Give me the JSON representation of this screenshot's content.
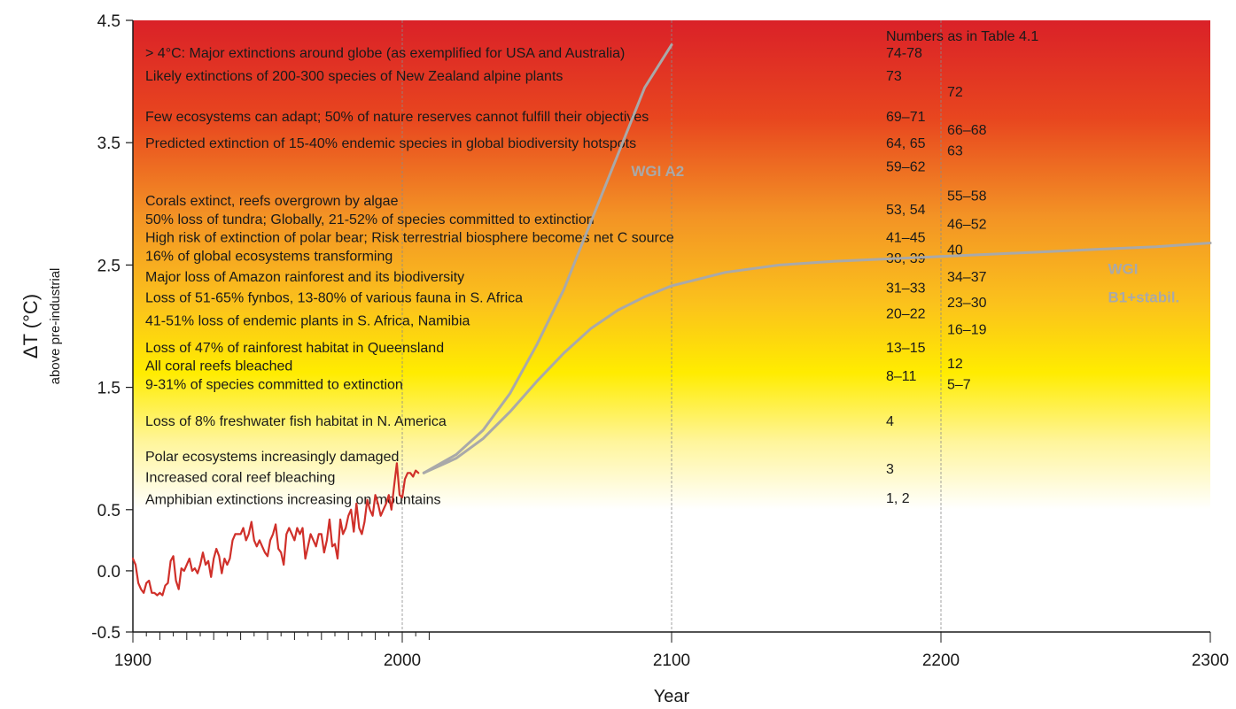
{
  "chart_data": {
    "type": "line",
    "xlabel": "Year",
    "ylabel": "ΔT (°C)",
    "ylabel_sub": "above pre-industrial",
    "xlim": [
      1900,
      2300
    ],
    "ylim": [
      -0.5,
      4.5
    ],
    "x_ticks": [
      "1900",
      "2000",
      "2100",
      "2200",
      "2300"
    ],
    "x_tick_values": [
      1900,
      2000,
      2100,
      2200,
      2300
    ],
    "y_ticks": [
      "4.5",
      "3.5",
      "2.5",
      "1.5",
      "0.5",
      "0.0",
      "-0.5"
    ],
    "y_tick_values": [
      4.5,
      3.5,
      2.5,
      1.5,
      0.5,
      0.0,
      -0.5
    ],
    "grid": "vertical dashed at 2000, 2100, 2200",
    "background": "vertical gradient from white (0.5 °C) through yellow to red (4.5 °C)",
    "colors": {
      "observed": "#d0302a",
      "scenario": "#a9a9a9",
      "gradient_red": "#da2128",
      "gradient_orange": "#f39325",
      "gradient_yellow": "#ffec00"
    },
    "series": [
      {
        "kind": "observed",
        "x": [
          1900,
          1901,
          1902,
          1903,
          1904,
          1905,
          1906,
          1907,
          1908,
          1909,
          1910,
          1911,
          1912,
          1913,
          1914,
          1915,
          1916,
          1917,
          1918,
          1919,
          1920,
          1921,
          1922,
          1923,
          1924,
          1925,
          1926,
          1927,
          1928,
          1929,
          1930,
          1931,
          1932,
          1933,
          1934,
          1935,
          1936,
          1937,
          1938,
          1939,
          1940,
          1941,
          1942,
          1943,
          1944,
          1945,
          1946,
          1947,
          1948,
          1949,
          1950,
          1951,
          1952,
          1953,
          1954,
          1955,
          1956,
          1957,
          1958,
          1959,
          1960,
          1961,
          1962,
          1963,
          1964,
          1965,
          1966,
          1967,
          1968,
          1969,
          1970,
          1971,
          1972,
          1973,
          1974,
          1975,
          1976,
          1977,
          1978,
          1979,
          1980,
          1981,
          1982,
          1983,
          1984,
          1985,
          1986,
          1987,
          1988,
          1989,
          1990,
          1991,
          1992,
          1993,
          1994,
          1995,
          1996,
          1997,
          1998,
          1999,
          2000,
          2001,
          2002,
          2003,
          2004,
          2005,
          2006
        ],
        "y": [
          0.1,
          0.05,
          -0.1,
          -0.15,
          -0.18,
          -0.1,
          -0.08,
          -0.18,
          -0.18,
          -0.2,
          -0.18,
          -0.2,
          -0.12,
          -0.1,
          0.08,
          0.12,
          -0.08,
          -0.15,
          0.02,
          0.0,
          0.05,
          0.1,
          0.0,
          0.02,
          -0.02,
          0.05,
          0.15,
          0.05,
          0.08,
          -0.05,
          0.1,
          0.18,
          0.12,
          -0.02,
          0.1,
          0.05,
          0.1,
          0.25,
          0.3,
          0.3,
          0.3,
          0.35,
          0.25,
          0.3,
          0.4,
          0.25,
          0.2,
          0.25,
          0.2,
          0.15,
          0.12,
          0.25,
          0.3,
          0.38,
          0.18,
          0.15,
          0.05,
          0.3,
          0.35,
          0.3,
          0.25,
          0.35,
          0.3,
          0.35,
          0.1,
          0.2,
          0.3,
          0.25,
          0.2,
          0.3,
          0.3,
          0.15,
          0.25,
          0.42,
          0.2,
          0.22,
          0.1,
          0.42,
          0.3,
          0.35,
          0.45,
          0.5,
          0.32,
          0.55,
          0.35,
          0.3,
          0.4,
          0.58,
          0.5,
          0.45,
          0.62,
          0.55,
          0.45,
          0.5,
          0.55,
          0.62,
          0.5,
          0.7,
          0.88,
          0.62,
          0.6,
          0.75,
          0.8,
          0.8,
          0.77,
          0.82,
          0.8
        ]
      },
      {
        "kind": "scenario",
        "x": [
          2008,
          2020,
          2030,
          2040,
          2050,
          2060,
          2070,
          2080,
          2090,
          2100
        ],
        "y": [
          0.8,
          0.95,
          1.15,
          1.45,
          1.85,
          2.3,
          2.85,
          3.4,
          3.95,
          4.3
        ]
      },
      {
        "kind": "scenario",
        "x": [
          2008,
          2020,
          2030,
          2040,
          2050,
          2060,
          2070,
          2080,
          2090,
          2100,
          2120,
          2140,
          2160,
          2180,
          2200,
          2220,
          2240,
          2260,
          2280,
          2300
        ],
        "y": [
          0.8,
          0.92,
          1.08,
          1.3,
          1.55,
          1.78,
          1.98,
          2.13,
          2.24,
          2.33,
          2.44,
          2.5,
          2.53,
          2.55,
          2.57,
          2.59,
          2.61,
          2.63,
          2.65,
          2.68
        ]
      }
    ],
    "scenario_labels": [
      {
        "text": "WGI A2",
        "x": 2085,
        "y": 3.27
      },
      {
        "text": "WGI",
        "x": 2262,
        "y": 2.47
      },
      {
        "text": "B1+stabil.",
        "x": 2262,
        "y": 2.24
      }
    ],
    "table_header": "Numbers as in Table 4.1",
    "impacts": [
      {
        "text": "> 4°C: Major extinctions around globe (as exemplified for USA and Australia)",
        "y": 4.24
      },
      {
        "text": "Likely extinctions of 200-300 species of New Zealand alpine plants",
        "y": 4.05
      },
      {
        "text": "Few ecosystems can adapt;  50% of nature reserves cannot fulfill their objectives",
        "y": 3.72
      },
      {
        "text": "Predicted extinction of 15-40% endemic species in global biodiversity hotspots",
        "y": 3.5
      },
      {
        "text": "Corals extinct, reefs overgrown by algae",
        "y": 3.03
      },
      {
        "text": "50% loss of tundra;  Globally, 21-52% of species committed to extinction",
        "y": 2.88
      },
      {
        "text": "High risk of extinction of polar bear;  Risk terrestrial biosphere becomes net C source",
        "y": 2.73
      },
      {
        "text": "16% of global ecosystems transforming",
        "y": 2.58
      },
      {
        "text": "Major loss of Amazon rainforest and its biodiversity",
        "y": 2.41
      },
      {
        "text": "Loss of 51-65% fynbos, 13-80% of various fauna in S. Africa",
        "y": 2.24
      },
      {
        "text": "41-51% loss of endemic plants in S. Africa, Namibia",
        "y": 2.05
      },
      {
        "text": "Loss of 47% of rainforest habitat in Queensland",
        "y": 1.83
      },
      {
        "text": "All coral reefs bleached",
        "y": 1.68
      },
      {
        "text": "9-31% of species committed to extinction",
        "y": 1.53
      },
      {
        "text": "Loss of 8% freshwater fish habitat in N. America",
        "y": 1.23
      },
      {
        "text": "Polar ecosystems increasingly damaged",
        "y": 0.94
      },
      {
        "text": "Increased coral reef bleaching",
        "y": 0.77
      },
      {
        "text": "Amphibian extinctions increasing on mountains",
        "y": 0.59
      }
    ],
    "refs_col1": [
      {
        "text": "74-78",
        "y": 4.24
      },
      {
        "text": "73",
        "y": 4.05
      },
      {
        "text": "69–71",
        "y": 3.72
      },
      {
        "text": "64, 65",
        "y": 3.5
      },
      {
        "text": "59–62",
        "y": 3.31
      },
      {
        "text": "53, 54",
        "y": 2.96
      },
      {
        "text": "41–45",
        "y": 2.73
      },
      {
        "text": "38, 39",
        "y": 2.56
      },
      {
        "text": "31–33",
        "y": 2.32
      },
      {
        "text": "20–22",
        "y": 2.11
      },
      {
        "text": "13–15",
        "y": 1.83
      },
      {
        "text": "8–11",
        "y": 1.6
      },
      {
        "text": "4",
        "y": 1.23
      },
      {
        "text": "3",
        "y": 0.84
      },
      {
        "text": "1, 2",
        "y": 0.6
      }
    ],
    "refs_col2": [
      {
        "text": "72",
        "y": 3.92
      },
      {
        "text": "66–68",
        "y": 3.61
      },
      {
        "text": "63",
        "y": 3.44
      },
      {
        "text": "55–58",
        "y": 3.07
      },
      {
        "text": "46–52",
        "y": 2.84
      },
      {
        "text": "40",
        "y": 2.63
      },
      {
        "text": "34–37",
        "y": 2.41
      },
      {
        "text": "23–30",
        "y": 2.2
      },
      {
        "text": "16–19",
        "y": 1.98
      },
      {
        "text": "12",
        "y": 1.7
      },
      {
        "text": "5–7",
        "y": 1.53
      }
    ]
  }
}
